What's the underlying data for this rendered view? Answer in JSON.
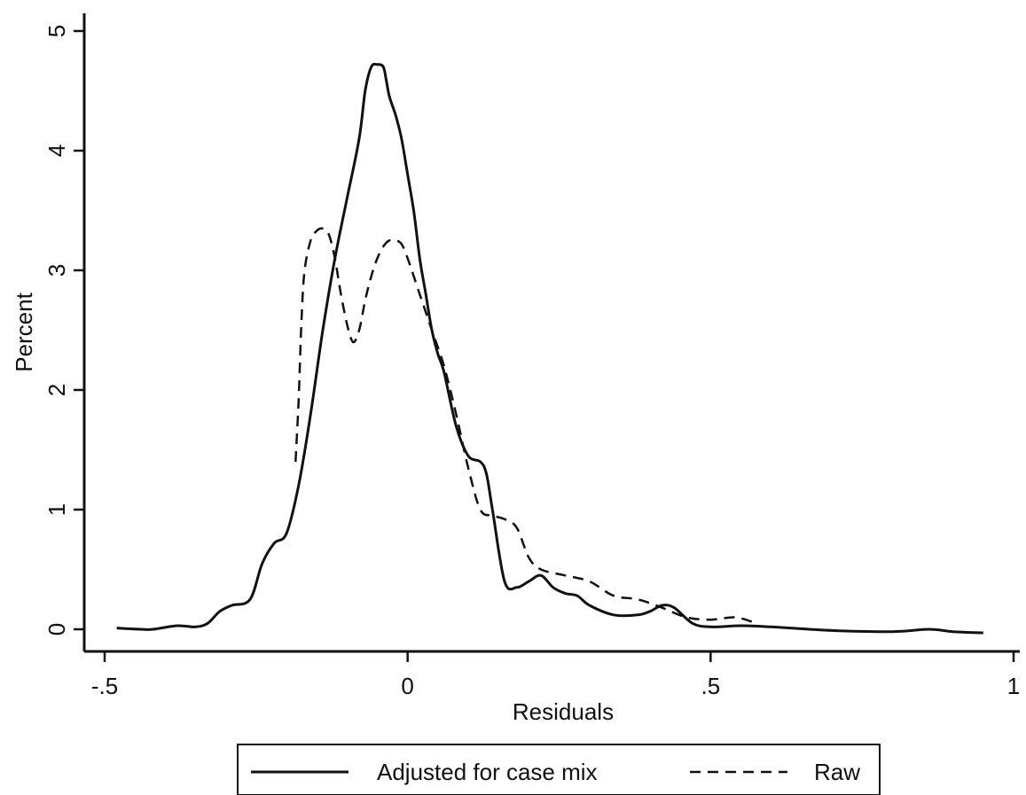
{
  "chart_data": {
    "type": "line",
    "title": "",
    "xlabel": "Residuals",
    "ylabel": "Percent",
    "xlim": [
      -0.5,
      1.0
    ],
    "ylim": [
      0,
      5
    ],
    "x_ticks": [
      -0.5,
      0,
      0.5,
      1
    ],
    "x_tick_labels": [
      "-.5",
      "0",
      ".5",
      "1"
    ],
    "y_ticks": [
      0,
      1,
      2,
      3,
      4,
      5
    ],
    "y_tick_labels": [
      "0",
      "1",
      "2",
      "3",
      "4",
      "5"
    ],
    "grid": false,
    "legend_position": "bottom",
    "series": [
      {
        "name": "Adjusted for case mix",
        "style": "solid",
        "color": "#111111",
        "x": [
          -0.48,
          -0.44,
          -0.42,
          -0.38,
          -0.35,
          -0.33,
          -0.31,
          -0.29,
          -0.26,
          -0.24,
          -0.22,
          -0.2,
          -0.18,
          -0.16,
          -0.14,
          -0.12,
          -0.1,
          -0.08,
          -0.07,
          -0.06,
          -0.05,
          -0.04,
          -0.035,
          -0.03,
          -0.02,
          -0.01,
          0.0,
          0.01,
          0.02,
          0.03,
          0.04,
          0.05,
          0.06,
          0.08,
          0.1,
          0.12,
          0.13,
          0.14,
          0.16,
          0.18,
          0.2,
          0.22,
          0.24,
          0.26,
          0.28,
          0.3,
          0.34,
          0.38,
          0.4,
          0.42,
          0.44,
          0.47,
          0.5,
          0.55,
          0.6,
          0.7,
          0.8,
          0.86,
          0.9,
          0.95
        ],
        "values": [
          0.01,
          0.0,
          0.0,
          0.03,
          0.02,
          0.05,
          0.15,
          0.2,
          0.25,
          0.55,
          0.72,
          0.8,
          1.2,
          1.8,
          2.5,
          3.1,
          3.6,
          4.1,
          4.5,
          4.7,
          4.72,
          4.7,
          4.58,
          4.45,
          4.3,
          4.1,
          3.8,
          3.5,
          3.1,
          2.8,
          2.5,
          2.3,
          2.15,
          1.7,
          1.45,
          1.4,
          1.3,
          1.0,
          0.4,
          0.35,
          0.4,
          0.45,
          0.35,
          0.3,
          0.28,
          0.2,
          0.12,
          0.12,
          0.15,
          0.2,
          0.18,
          0.05,
          0.02,
          0.03,
          0.02,
          -0.01,
          -0.02,
          0.0,
          -0.02,
          -0.03
        ]
      },
      {
        "name": "Raw",
        "style": "dashed",
        "color": "#111111",
        "x": [
          -0.185,
          -0.18,
          -0.175,
          -0.17,
          -0.16,
          -0.15,
          -0.14,
          -0.13,
          -0.12,
          -0.11,
          -0.1,
          -0.09,
          -0.08,
          -0.07,
          -0.06,
          -0.05,
          -0.04,
          -0.03,
          -0.02,
          -0.01,
          0.0,
          0.02,
          0.04,
          0.06,
          0.08,
          0.1,
          0.12,
          0.14,
          0.16,
          0.18,
          0.2,
          0.22,
          0.26,
          0.3,
          0.34,
          0.38,
          0.42,
          0.46,
          0.5,
          0.54,
          0.57
        ],
        "values": [
          1.4,
          1.9,
          2.6,
          3.0,
          3.25,
          3.33,
          3.35,
          3.3,
          3.1,
          2.8,
          2.55,
          2.4,
          2.5,
          2.75,
          2.95,
          3.1,
          3.2,
          3.25,
          3.25,
          3.22,
          3.1,
          2.8,
          2.5,
          2.2,
          1.8,
          1.35,
          1.0,
          0.95,
          0.92,
          0.85,
          0.6,
          0.5,
          0.45,
          0.4,
          0.28,
          0.25,
          0.18,
          0.1,
          0.08,
          0.1,
          0.06
        ]
      }
    ]
  }
}
